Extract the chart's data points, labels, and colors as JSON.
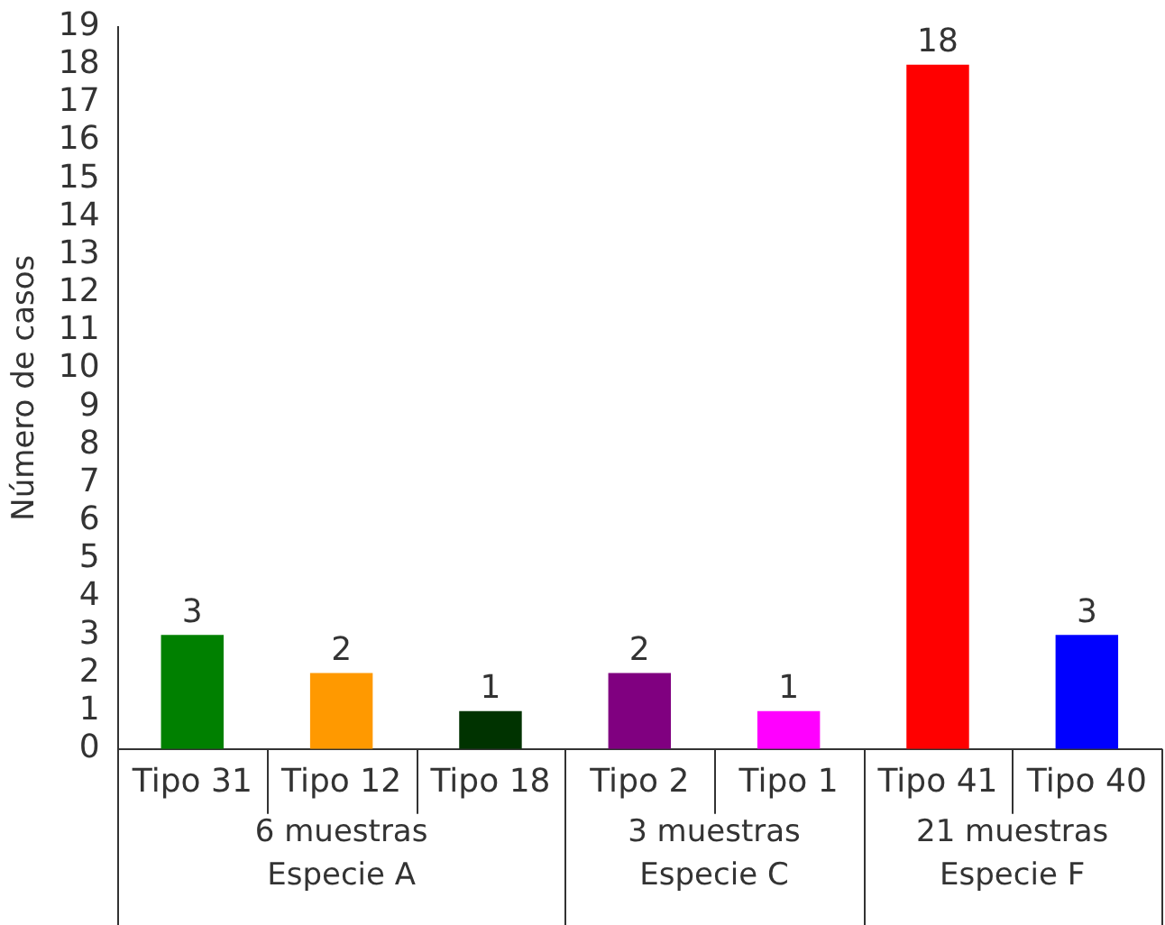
{
  "chart_data": {
    "type": "bar",
    "ylabel": "Número de casos",
    "categories": [
      "Tipo 31",
      "Tipo 12",
      "Tipo 18",
      "Tipo 2",
      "Tipo 1",
      "Tipo 41",
      "Tipo 40"
    ],
    "values": [
      3,
      2,
      1,
      2,
      1,
      18,
      3
    ],
    "colors": [
      "#008000",
      "#ff9900",
      "#003300",
      "#800080",
      "#ff00ff",
      "#ff0000",
      "#0000ff"
    ],
    "ylim": [
      0,
      19
    ],
    "yticks": [
      0,
      1,
      2,
      3,
      4,
      5,
      6,
      7,
      8,
      9,
      10,
      11,
      12,
      13,
      14,
      15,
      16,
      17,
      18,
      19
    ],
    "grid": false,
    "legend": false,
    "data_labels": true,
    "annotations": [
      "6 muestras\nEspecie A",
      "3 muestras\nEspecie C",
      "21 muestras\nEspecie F"
    ]
  }
}
